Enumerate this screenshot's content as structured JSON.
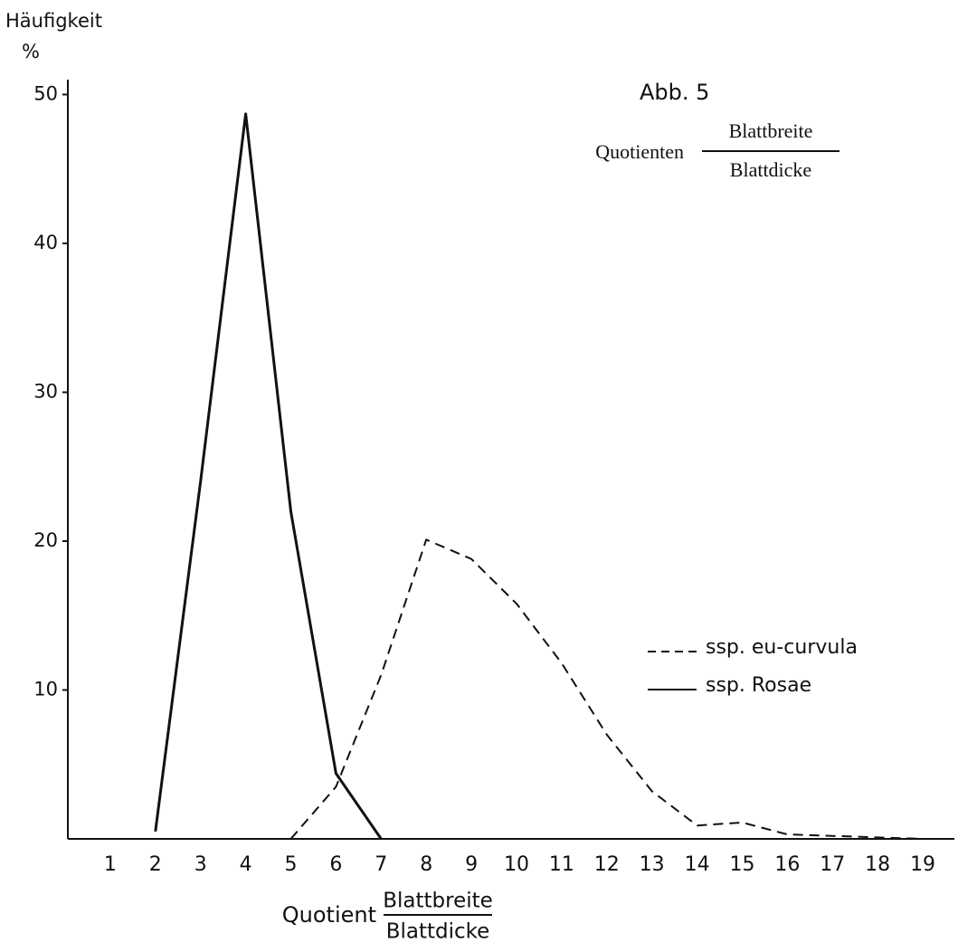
{
  "chart_data": {
    "type": "line",
    "title": "Abb. 5",
    "subtitle": {
      "text": "Quotienten",
      "numerator": "Blattbreite",
      "denominator": "Blattdicke"
    },
    "y_label": "Häufigkeit",
    "y_unit": "%",
    "x_label": {
      "text": "Quotient",
      "numerator": "Blattbreite",
      "denominator": "Blattdicke"
    },
    "xlim": [
      0,
      19.7
    ],
    "ylim": [
      0,
      51
    ],
    "xticks": [
      1,
      2,
      3,
      4,
      5,
      6,
      7,
      8,
      9,
      10,
      11,
      12,
      13,
      14,
      15,
      16,
      17,
      18,
      19
    ],
    "yticks": [
      10,
      20,
      30,
      40,
      50
    ],
    "legend": "right",
    "series": [
      {
        "name": "ssp. eu-curvula",
        "color": "#111111",
        "dash": true,
        "x": [
          5,
          6,
          7,
          8,
          9,
          10,
          11,
          12,
          13,
          14,
          15,
          16,
          17,
          18,
          19
        ],
        "values": [
          0,
          3.5,
          11,
          20.1,
          18.8,
          15.8,
          11.8,
          7,
          3.2,
          0.9,
          1.1,
          0.3,
          0.2,
          0.1,
          0
        ]
      },
      {
        "name": "ssp. Rosae",
        "color": "#111111",
        "dash": false,
        "x": [
          2,
          3,
          4,
          5,
          6,
          7
        ],
        "values": [
          0.5,
          24,
          48.7,
          22,
          4.4,
          0
        ]
      }
    ]
  }
}
